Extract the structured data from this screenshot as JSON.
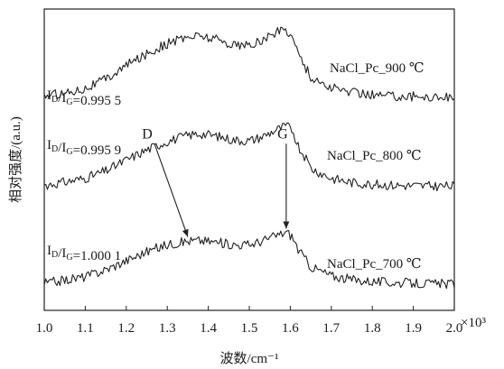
{
  "chart_data": {
    "type": "line",
    "xlabel": "波数/cm⁻¹",
    "ylabel": "相对强度/(a.u.)",
    "x_multiplier": "×10³",
    "xlim": [
      1.0,
      2.0
    ],
    "ylim": [
      0,
      10
    ],
    "xticks": [
      1.0,
      1.1,
      1.2,
      1.3,
      1.4,
      1.5,
      1.6,
      1.7,
      1.8,
      1.9,
      2.0
    ],
    "xtick_labels": [
      "1.0",
      "1.1",
      "1.2",
      "1.3",
      "1.4",
      "1.5",
      "1.6",
      "1.7",
      "1.8",
      "1.9",
      "2.0"
    ],
    "series": [
      {
        "name": "NaCl_Pc_900 ℃",
        "ratio_label": "I_D/I_G=0.995 5",
        "points": [
          [
            1.0,
            7.12
          ],
          [
            1.05,
            7.22
          ],
          [
            1.1,
            7.38
          ],
          [
            1.15,
            7.68
          ],
          [
            1.2,
            8.12
          ],
          [
            1.25,
            8.52
          ],
          [
            1.3,
            8.85
          ],
          [
            1.35,
            9.08
          ],
          [
            1.38,
            9.12
          ],
          [
            1.42,
            9.0
          ],
          [
            1.46,
            8.82
          ],
          [
            1.5,
            8.78
          ],
          [
            1.53,
            8.95
          ],
          [
            1.56,
            9.18
          ],
          [
            1.585,
            9.35
          ],
          [
            1.6,
            9.2
          ],
          [
            1.62,
            8.55
          ],
          [
            1.65,
            7.72
          ],
          [
            1.7,
            7.38
          ],
          [
            1.75,
            7.24
          ],
          [
            1.8,
            7.16
          ],
          [
            1.85,
            7.12
          ],
          [
            1.9,
            7.1
          ],
          [
            1.95,
            7.08
          ],
          [
            2.0,
            7.08
          ]
        ]
      },
      {
        "name": "NaCl_Pc_800 ℃",
        "ratio_label": "I_D/I_G=0.995 9",
        "points": [
          [
            1.0,
            4.15
          ],
          [
            1.05,
            4.25
          ],
          [
            1.1,
            4.38
          ],
          [
            1.15,
            4.62
          ],
          [
            1.2,
            4.98
          ],
          [
            1.25,
            5.32
          ],
          [
            1.3,
            5.6
          ],
          [
            1.35,
            5.8
          ],
          [
            1.38,
            5.86
          ],
          [
            1.42,
            5.78
          ],
          [
            1.46,
            5.65
          ],
          [
            1.5,
            5.62
          ],
          [
            1.53,
            5.75
          ],
          [
            1.56,
            5.95
          ],
          [
            1.59,
            6.12
          ],
          [
            1.605,
            6.0
          ],
          [
            1.62,
            5.45
          ],
          [
            1.65,
            4.72
          ],
          [
            1.7,
            4.38
          ],
          [
            1.75,
            4.24
          ],
          [
            1.8,
            4.18
          ],
          [
            1.85,
            4.15
          ],
          [
            1.9,
            4.13
          ],
          [
            1.95,
            4.12
          ],
          [
            2.0,
            4.12
          ]
        ]
      },
      {
        "name": "NaCl_Pc_700 ℃",
        "ratio_label": "I_D/I_G=1.000 1",
        "points": [
          [
            1.0,
            0.9
          ],
          [
            1.05,
            1.0
          ],
          [
            1.1,
            1.12
          ],
          [
            1.15,
            1.35
          ],
          [
            1.2,
            1.65
          ],
          [
            1.25,
            1.95
          ],
          [
            1.3,
            2.18
          ],
          [
            1.35,
            2.3
          ],
          [
            1.38,
            2.32
          ],
          [
            1.42,
            2.26
          ],
          [
            1.46,
            2.18
          ],
          [
            1.5,
            2.18
          ],
          [
            1.53,
            2.3
          ],
          [
            1.56,
            2.45
          ],
          [
            1.59,
            2.6
          ],
          [
            1.605,
            2.45
          ],
          [
            1.62,
            2.0
          ],
          [
            1.65,
            1.45
          ],
          [
            1.7,
            1.15
          ],
          [
            1.75,
            1.02
          ],
          [
            1.8,
            0.96
          ],
          [
            1.85,
            0.92
          ],
          [
            1.9,
            0.9
          ],
          [
            1.95,
            0.88
          ],
          [
            2.0,
            0.88
          ]
        ]
      }
    ],
    "annotations": [
      {
        "text": "D",
        "x": 1.35,
        "y": 2.35
      },
      {
        "text": "G",
        "x": 1.59,
        "y": 2.62
      }
    ],
    "grid": false,
    "legend": "inline"
  }
}
